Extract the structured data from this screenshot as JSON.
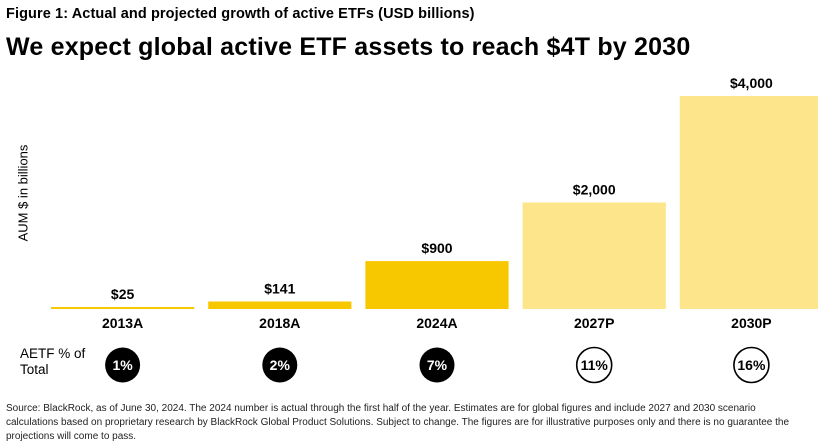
{
  "figure_label": "Figure 1: Actual and projected growth of active ETFs (USD billions)",
  "headline": "We expect global active ETF assets to reach $4T by 2030",
  "aetf_label": "AETF % of Total",
  "source": "Source: BlackRock, as of June 30, 2024. The 2024 number is actual through the first half of the year. Estimates are for global figures and include 2027 and 2030 scenario calculations based on proprietary research by BlackRock Global Product Solutions. Subject to change. The figures are for illustrative purposes only and there is no guarantee the projections will come to pass.",
  "colors": {
    "actual": "#F7C800",
    "projected": "#FCE58A",
    "text": "#000000"
  },
  "chart_data": {
    "type": "bar",
    "title": "Actual and projected growth of active ETFs (USD billions)",
    "xlabel": "",
    "ylabel": "AUM $ in billions",
    "ylim": [
      0,
      4000
    ],
    "categories": [
      "2013A",
      "2018A",
      "2024A",
      "2027P",
      "2030P"
    ],
    "values": [
      25,
      141,
      900,
      2000,
      4000
    ],
    "value_labels": [
      "$25",
      "$141",
      "$900",
      "$2,000",
      "$4,000"
    ],
    "kinds": [
      "actual",
      "actual",
      "actual",
      "projected",
      "projected"
    ],
    "aetf_pct": [
      "1%",
      "2%",
      "7%",
      "11%",
      "16%"
    ]
  }
}
